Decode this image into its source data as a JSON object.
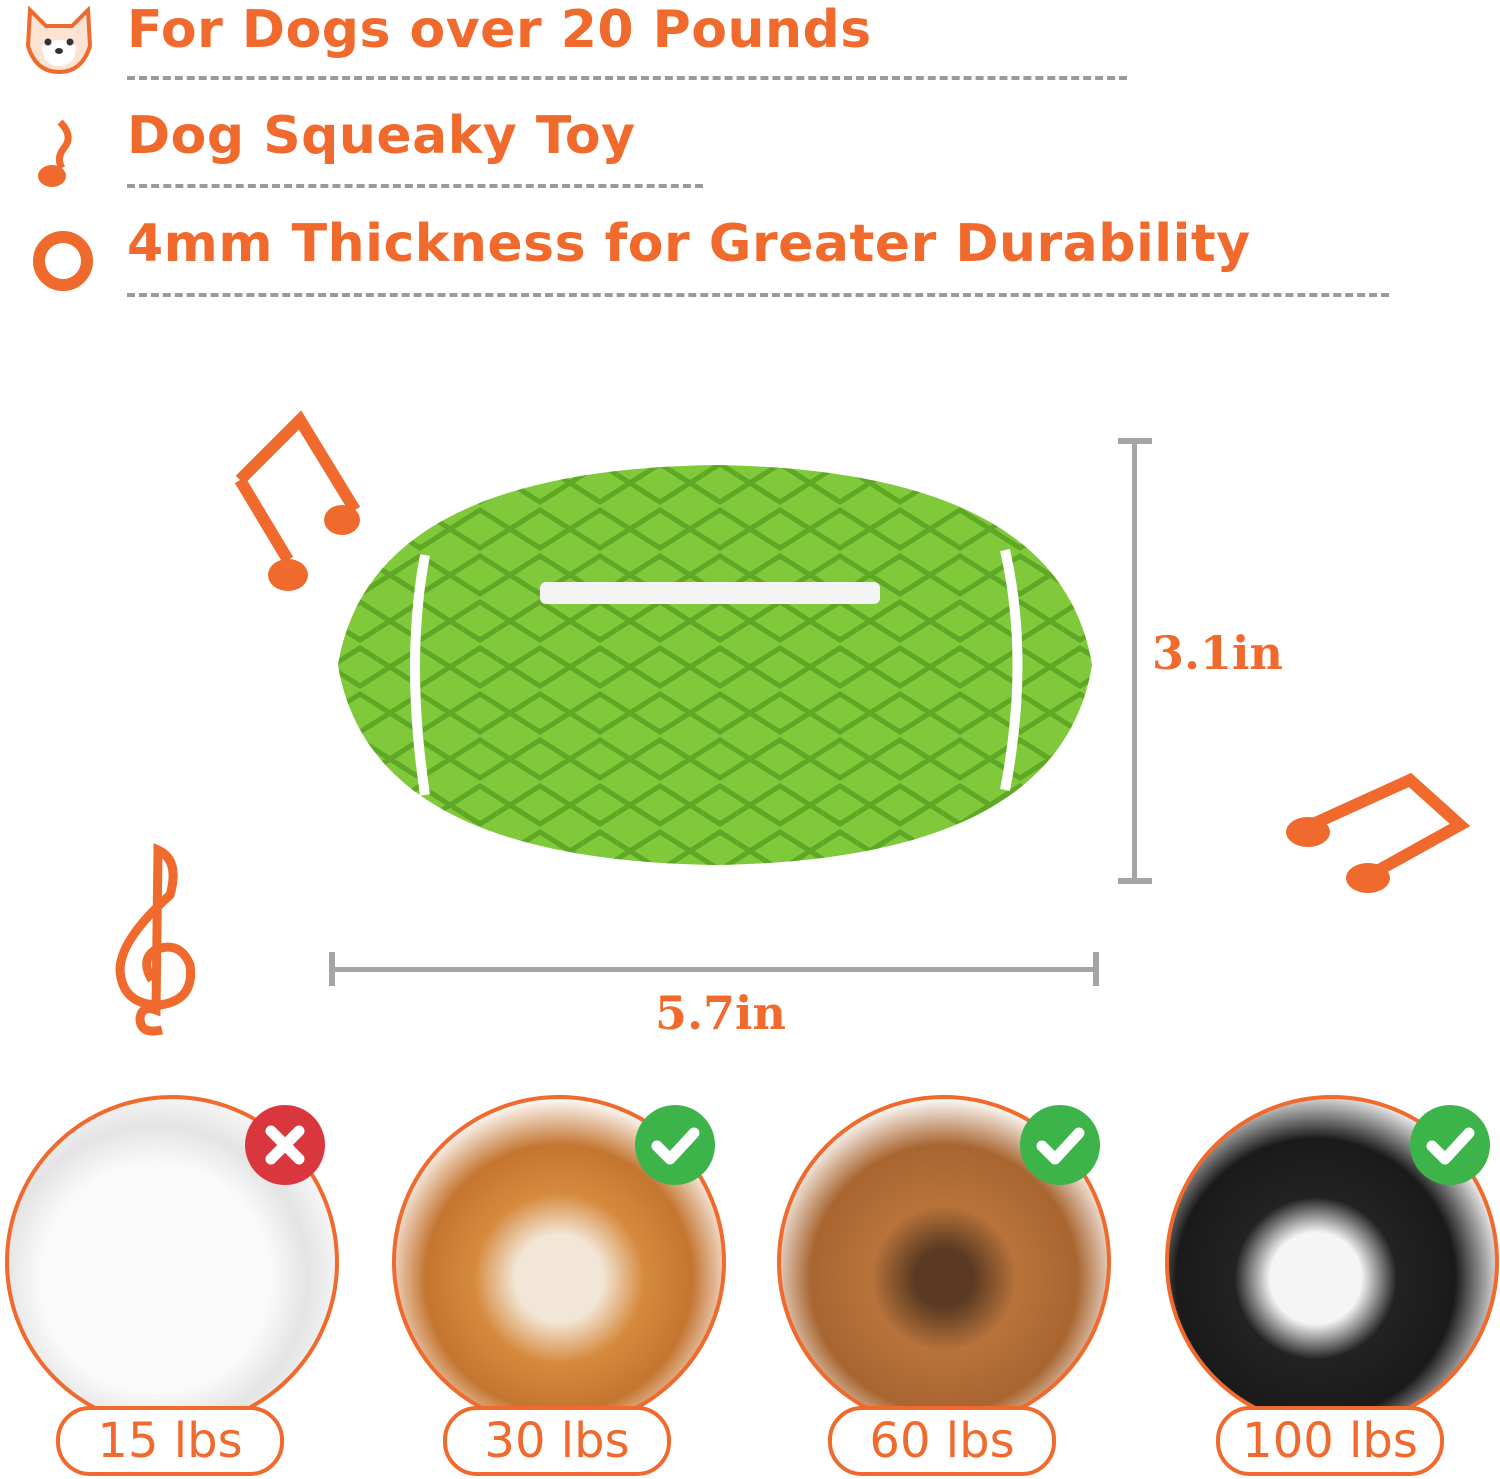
{
  "features": [
    {
      "icon": "dog-face-icon",
      "text": "For Dogs over 20 Pounds"
    },
    {
      "icon": "music-note-icon",
      "text": "Dog Squeaky Toy"
    },
    {
      "icon": "ring-icon",
      "text": "4mm Thickness for Greater Durability"
    }
  ],
  "dimensions": {
    "height": "3.1in",
    "width": "5.7in"
  },
  "dogs": [
    {
      "weight": "15 lbs",
      "suitable": false,
      "badge_icon": "x-icon"
    },
    {
      "weight": "30 lbs",
      "suitable": true,
      "badge_icon": "check-icon"
    },
    {
      "weight": "60 lbs",
      "suitable": true,
      "badge_icon": "check-icon"
    },
    {
      "weight": "100 lbs",
      "suitable": true,
      "badge_icon": "check-icon"
    }
  ],
  "colors": {
    "accent": "#ef6a2c",
    "ball": "#7fc93a",
    "ok": "#3cb44a",
    "no": "#d9363e"
  }
}
